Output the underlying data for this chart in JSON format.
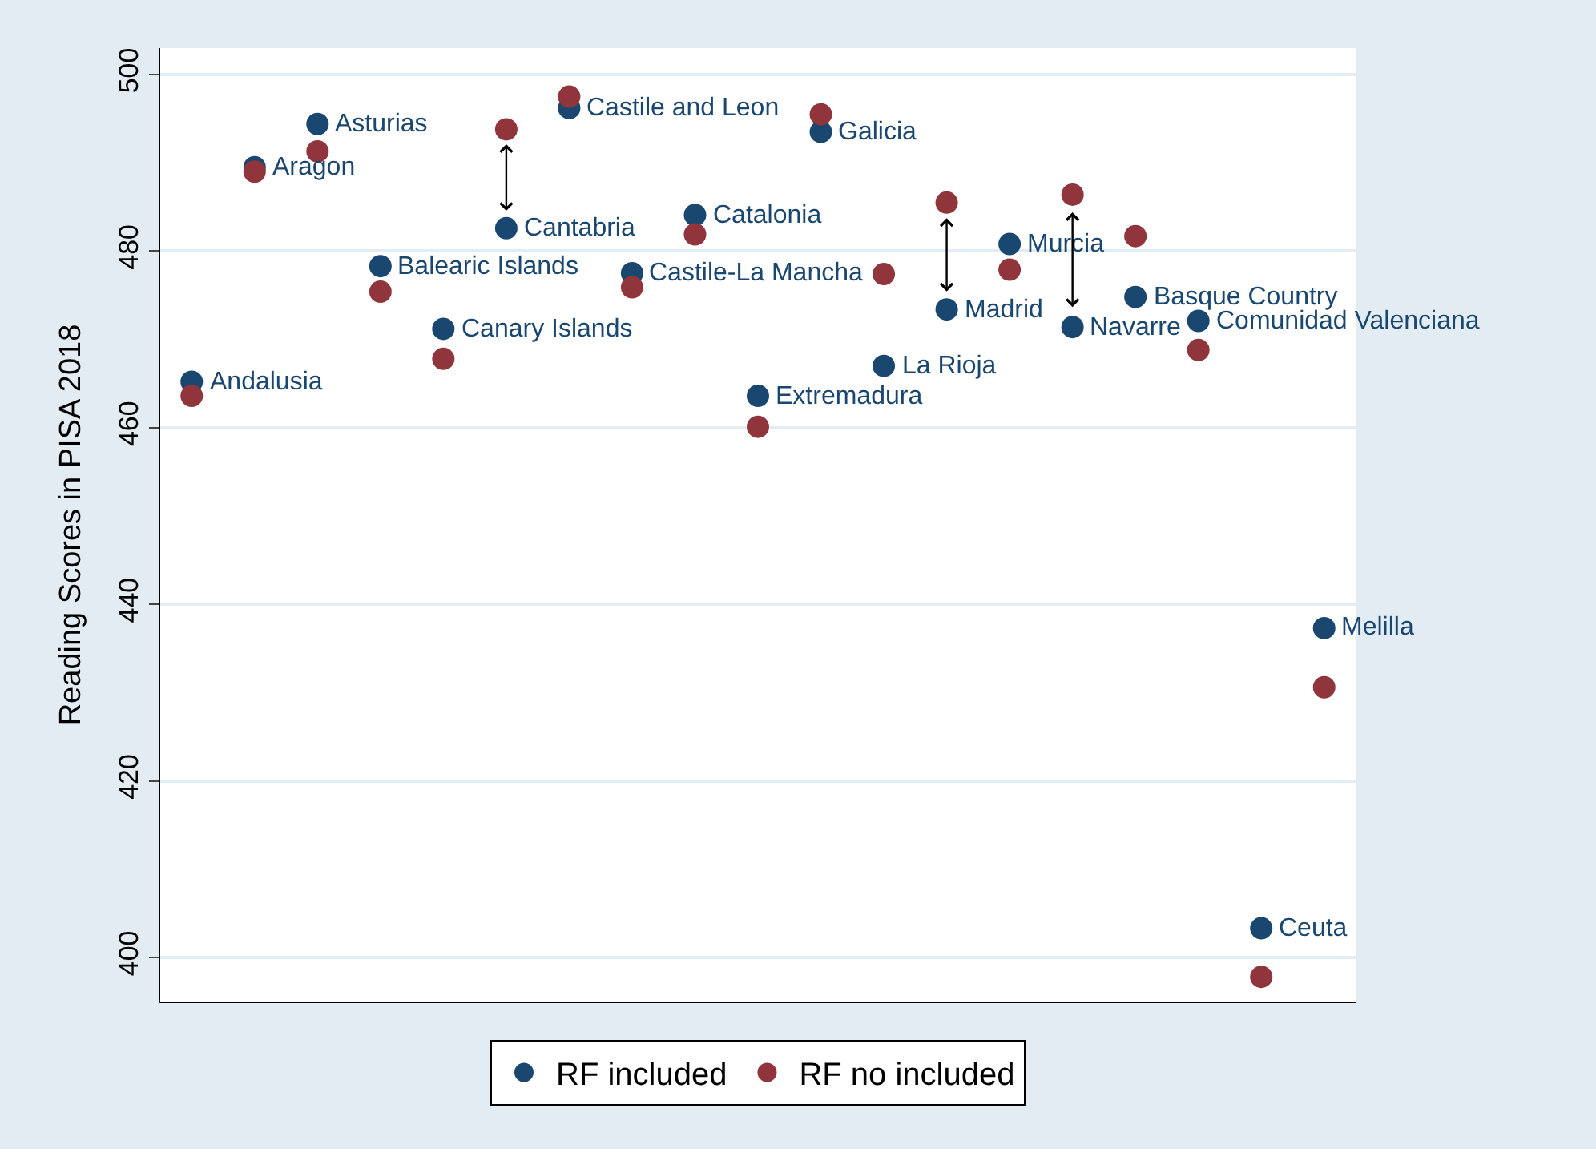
{
  "chart_data": {
    "type": "scatter",
    "ylabel": "Reading Scores in PISA 2018",
    "categories": [
      null,
      null,
      null,
      null,
      null,
      null,
      null,
      null,
      null,
      null,
      null,
      null,
      null,
      null,
      null,
      null,
      null,
      null,
      null
    ],
    "series": [
      {
        "name": "RF included",
        "color": "#1a476f",
        "values": [
          465.2,
          489.5,
          494.4,
          478.3,
          471.2,
          482.6,
          496.2,
          477.5,
          484.1,
          463.6,
          493.5,
          467.0,
          473.4,
          480.8,
          471.4,
          474.8,
          472.1,
          403.3,
          437.3
        ],
        "value_labels": [
          "Andalusia",
          "Aragon",
          "Asturias",
          "Balearic Islands",
          "Canary Islands",
          "Cantabria",
          "Castile and Leon",
          "Castile-La Mancha",
          "Catalonia",
          "Extremadura",
          "Galicia",
          "La Rioja",
          "Madrid",
          "Murcia",
          "Navarre",
          "Basque Country",
          "Comunidad Valenciana",
          "Ceuta",
          "Melilla"
        ]
      },
      {
        "name": "RF no included",
        "color": "#90353b",
        "values": [
          463.6,
          489.0,
          491.3,
          475.4,
          467.8,
          493.8,
          497.5,
          475.9,
          481.9,
          460.1,
          495.5,
          477.4,
          485.5,
          477.9,
          486.4,
          481.7,
          468.8,
          397.8,
          430.6
        ]
      }
    ],
    "ylim": [
      395,
      503
    ],
    "yticks": [
      400,
      420,
      440,
      460,
      480,
      500
    ],
    "grid": "y",
    "legend": "bottom",
    "marker": "circle",
    "tick_labels": "y"
  }
}
